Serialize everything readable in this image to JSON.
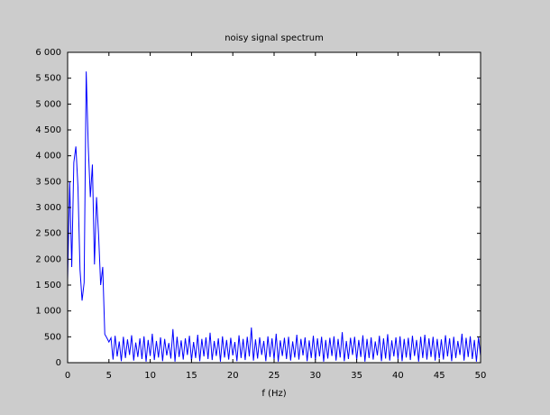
{
  "chart_data": {
    "type": "line",
    "title": "noisy signal spectrum",
    "x_label": "f (Hz)",
    "x": [
      0,
      0.25,
      0.5,
      0.75,
      1,
      1.25,
      1.5,
      1.75,
      2,
      2.25,
      2.5,
      2.75,
      3,
      3.25,
      3.5,
      3.75,
      4,
      4.25,
      4.5,
      4.75,
      5,
      5.25,
      5.5,
      5.75,
      6,
      6.25,
      6.5,
      6.75,
      7,
      7.25,
      7.5,
      7.75,
      8,
      8.25,
      8.5,
      8.75,
      9,
      9.25,
      9.5,
      9.75,
      10,
      10.25,
      10.5,
      10.75,
      11,
      11.25,
      11.5,
      11.75,
      12,
      12.25,
      12.5,
      12.75,
      13,
      13.25,
      13.5,
      13.75,
      14,
      14.25,
      14.5,
      14.75,
      15,
      15.25,
      15.5,
      15.75,
      16,
      16.25,
      16.5,
      16.75,
      17,
      17.25,
      17.5,
      17.75,
      18,
      18.25,
      18.5,
      18.75,
      19,
      19.25,
      19.5,
      19.75,
      20,
      20.25,
      20.5,
      20.75,
      21,
      21.25,
      21.5,
      21.75,
      22,
      22.25,
      22.5,
      22.75,
      23,
      23.25,
      23.5,
      23.75,
      24,
      24.25,
      24.5,
      24.75,
      25,
      25.25,
      25.5,
      25.75,
      26,
      26.25,
      26.5,
      26.75,
      27,
      27.25,
      27.5,
      27.75,
      28,
      28.25,
      28.5,
      28.75,
      29,
      29.25,
      29.5,
      29.75,
      30,
      30.25,
      30.5,
      30.75,
      31,
      31.25,
      31.5,
      31.75,
      32,
      32.25,
      32.5,
      32.75,
      33,
      33.25,
      33.5,
      33.75,
      34,
      34.25,
      34.5,
      34.75,
      35,
      35.25,
      35.5,
      35.75,
      36,
      36.25,
      36.5,
      36.75,
      37,
      37.25,
      37.5,
      37.75,
      38,
      38.25,
      38.5,
      38.75,
      39,
      39.25,
      39.5,
      39.75,
      40,
      40.25,
      40.5,
      40.75,
      41,
      41.25,
      41.5,
      41.75,
      42,
      42.25,
      42.5,
      42.75,
      43,
      43.25,
      43.5,
      43.75,
      44,
      44.25,
      44.5,
      44.75,
      45,
      45.25,
      45.5,
      45.75,
      46,
      46.25,
      46.5,
      46.75,
      47,
      47.25,
      47.5,
      47.75,
      48,
      48.25,
      48.5,
      48.75,
      49,
      49.25,
      49.5,
      49.75,
      50
    ],
    "series": [
      {
        "color": "#0000ff",
        "values": [
          1600,
          3500,
          1850,
          3870,
          4180,
          3400,
          1800,
          1200,
          1550,
          5630,
          4180,
          3200,
          3830,
          1900,
          3200,
          2470,
          1500,
          1850,
          550,
          480,
          400,
          480,
          60,
          520,
          120,
          410,
          30,
          500,
          90,
          450,
          150,
          530,
          40,
          390,
          110,
          470,
          70,
          510,
          20,
          440,
          130,
          560,
          50,
          420,
          100,
          490,
          30,
          460,
          140,
          380,
          80,
          650,
          20,
          500,
          110,
          430,
          60,
          470,
          150,
          520,
          40,
          400,
          90,
          540,
          30,
          460,
          120,
          490,
          70,
          580,
          50,
          420,
          130,
          470,
          20,
          510,
          100,
          440,
          60,
          480,
          140,
          400,
          30,
          530,
          90,
          460,
          50,
          500,
          120,
          680,
          40,
          450,
          80,
          490,
          150,
          420,
          30,
          510,
          110,
          470,
          60,
          560,
          20,
          430,
          130,
          480,
          70,
          500,
          40,
          410,
          100,
          540,
          60,
          460,
          140,
          490,
          30,
          430,
          90,
          520,
          50,
          470,
          120,
          500,
          20,
          440,
          80,
          480,
          130,
          510,
          40,
          460,
          100,
          590,
          30,
          420,
          70,
          480,
          150,
          500,
          50,
          440,
          110,
          530,
          20,
          460,
          90,
          490,
          60,
          410,
          140,
          520,
          30,
          470,
          80,
          550,
          40,
          430,
          120,
          490,
          70,
          510,
          30,
          460,
          100,
          480,
          50,
          520,
          130,
          440,
          20,
          500,
          90,
          540,
          60,
          470,
          110,
          500,
          40,
          460,
          80,
          450,
          60,
          530,
          120,
          470,
          30,
          500,
          90,
          420,
          150,
          560,
          40,
          480,
          110,
          510,
          70,
          440,
          20,
          490,
          130
        ]
      }
    ],
    "xlim": [
      0,
      50
    ],
    "xticks": [
      0,
      5,
      10,
      15,
      20,
      25,
      30,
      35,
      40,
      45,
      50
    ],
    "ylim": [
      0,
      6000
    ],
    "yticks": [
      0,
      500,
      {
        "value": 1000,
        "label": "1 000"
      },
      {
        "value": 1500,
        "label": "1 500"
      },
      {
        "value": 2000,
        "label": "2 000"
      },
      {
        "value": 2500,
        "label": "2 500"
      },
      {
        "value": 3000,
        "label": "3 000"
      },
      {
        "value": 3500,
        "label": "3 500"
      },
      {
        "value": 4000,
        "label": "4 000"
      },
      {
        "value": 4500,
        "label": "4 500"
      },
      {
        "value": 5000,
        "label": "5 000"
      },
      {
        "value": 5500,
        "label": "5 500"
      },
      {
        "value": 6000,
        "label": "6 000"
      }
    ]
  }
}
